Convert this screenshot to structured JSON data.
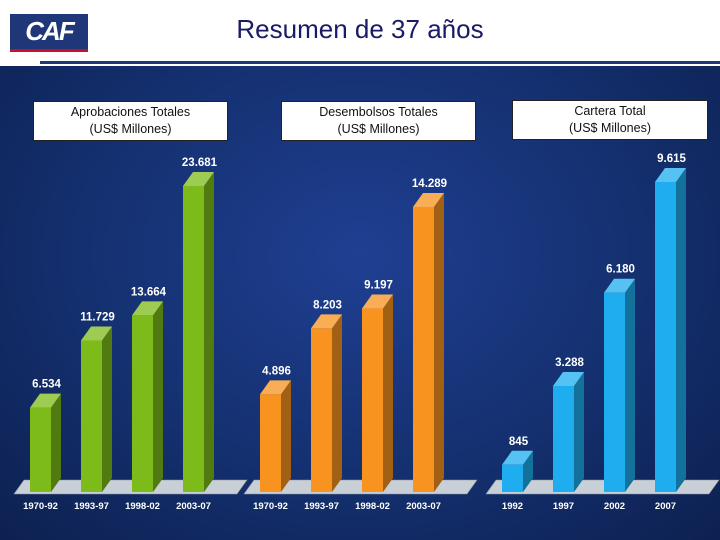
{
  "header": {
    "logo": "CAF",
    "title": "Resumen de 37 años"
  },
  "panels": [
    {
      "title": "Aprobaciones Totales",
      "subtitle": "(US$ Millones)"
    },
    {
      "title": "Desembolsos Totales",
      "subtitle": "(US$ Millones)"
    },
    {
      "title": "Cartera Total",
      "subtitle": "(US$ Millones)"
    }
  ],
  "chart_data": [
    {
      "type": "bar",
      "title": "Aprobaciones Totales (US$ Millones)",
      "categories": [
        "1970-92",
        "1993-97",
        "1998-02",
        "2003-07"
      ],
      "values": [
        6534,
        11729,
        13664,
        23681
      ],
      "labels": [
        "6.534",
        "11.729",
        "13.664",
        "23.681"
      ],
      "color": "#7dbb1a"
    },
    {
      "type": "bar",
      "title": "Desembolsos Totales (US$ Millones)",
      "categories": [
        "1970-92",
        "1993-97",
        "1998-02",
        "2003-07"
      ],
      "values": [
        4896,
        8203,
        9197,
        14289
      ],
      "labels": [
        "4.896",
        "8.203",
        "9.197",
        "14.289"
      ],
      "color": "#f7931e"
    },
    {
      "type": "bar",
      "title": "Cartera Total (US$ Millones)",
      "categories": [
        "1992",
        "1997",
        "2002",
        "2007"
      ],
      "values": [
        845,
        3288,
        6180,
        9615
      ],
      "labels": [
        "845",
        "3.288",
        "6.180",
        "9.615"
      ],
      "color": "#1eaef0"
    }
  ]
}
